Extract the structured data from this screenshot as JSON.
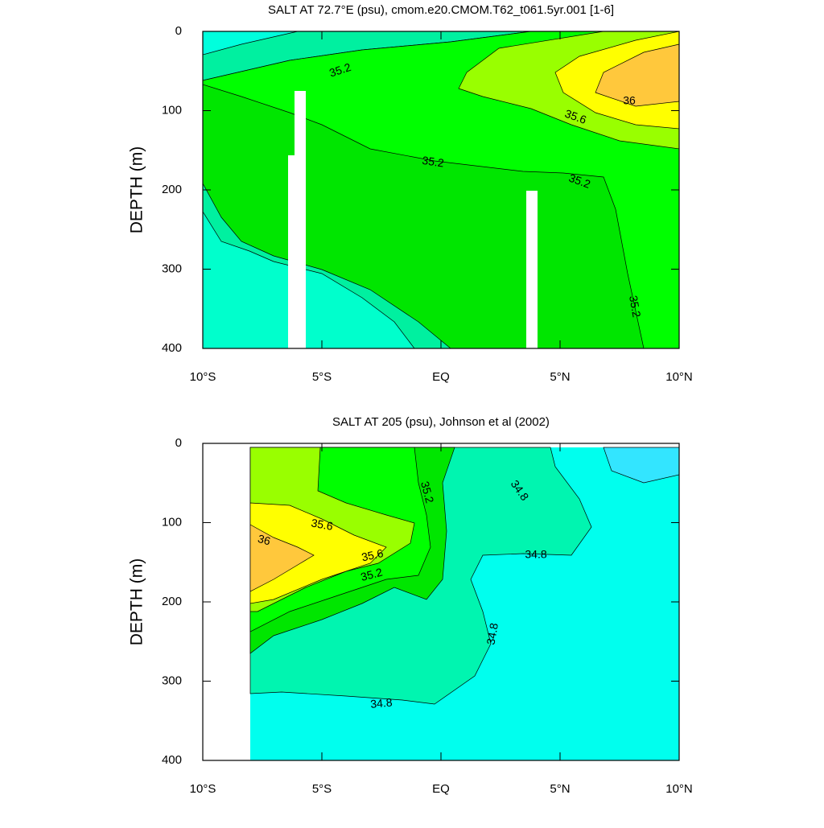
{
  "chart_data": [
    {
      "type": "contour",
      "title": "SALT AT  72.7°E (psu), cmom.e20.CMOM.T62_t061.5yr.001 [1-6]",
      "ylabel": "DEPTH (m)",
      "xlim": [
        -10,
        10
      ],
      "xticks": [
        {
          "value": -10,
          "label": "10°S"
        },
        {
          "value": -5,
          "label": "5°S"
        },
        {
          "value": 0,
          "label": "EQ"
        },
        {
          "value": 5,
          "label": "5°N"
        },
        {
          "value": 10,
          "label": "10°N"
        }
      ],
      "ylim": [
        0,
        400
      ],
      "y_inverted": true,
      "yticks": [
        0,
        100,
        200,
        300,
        400
      ],
      "contour_labels": [
        35.2,
        36,
        35.6,
        35.2,
        35.2,
        35.2
      ]
    },
    {
      "type": "contour",
      "title": "SALT AT 205 (psu), Johnson et al (2002)",
      "ylabel": "DEPTH (m)",
      "xlim": [
        -10,
        10
      ],
      "xticks": [
        {
          "value": -10,
          "label": "10°S"
        },
        {
          "value": -5,
          "label": "5°S"
        },
        {
          "value": 0,
          "label": "EQ"
        },
        {
          "value": 5,
          "label": "5°N"
        },
        {
          "value": 10,
          "label": "10°N"
        }
      ],
      "ylim": [
        0,
        400
      ],
      "y_inverted": true,
      "yticks": [
        0,
        100,
        200,
        300,
        400
      ],
      "contour_labels": [
        35.2,
        34.8,
        35.6,
        36,
        35.6,
        35.2,
        34.8,
        34.8,
        34.8
      ]
    }
  ]
}
